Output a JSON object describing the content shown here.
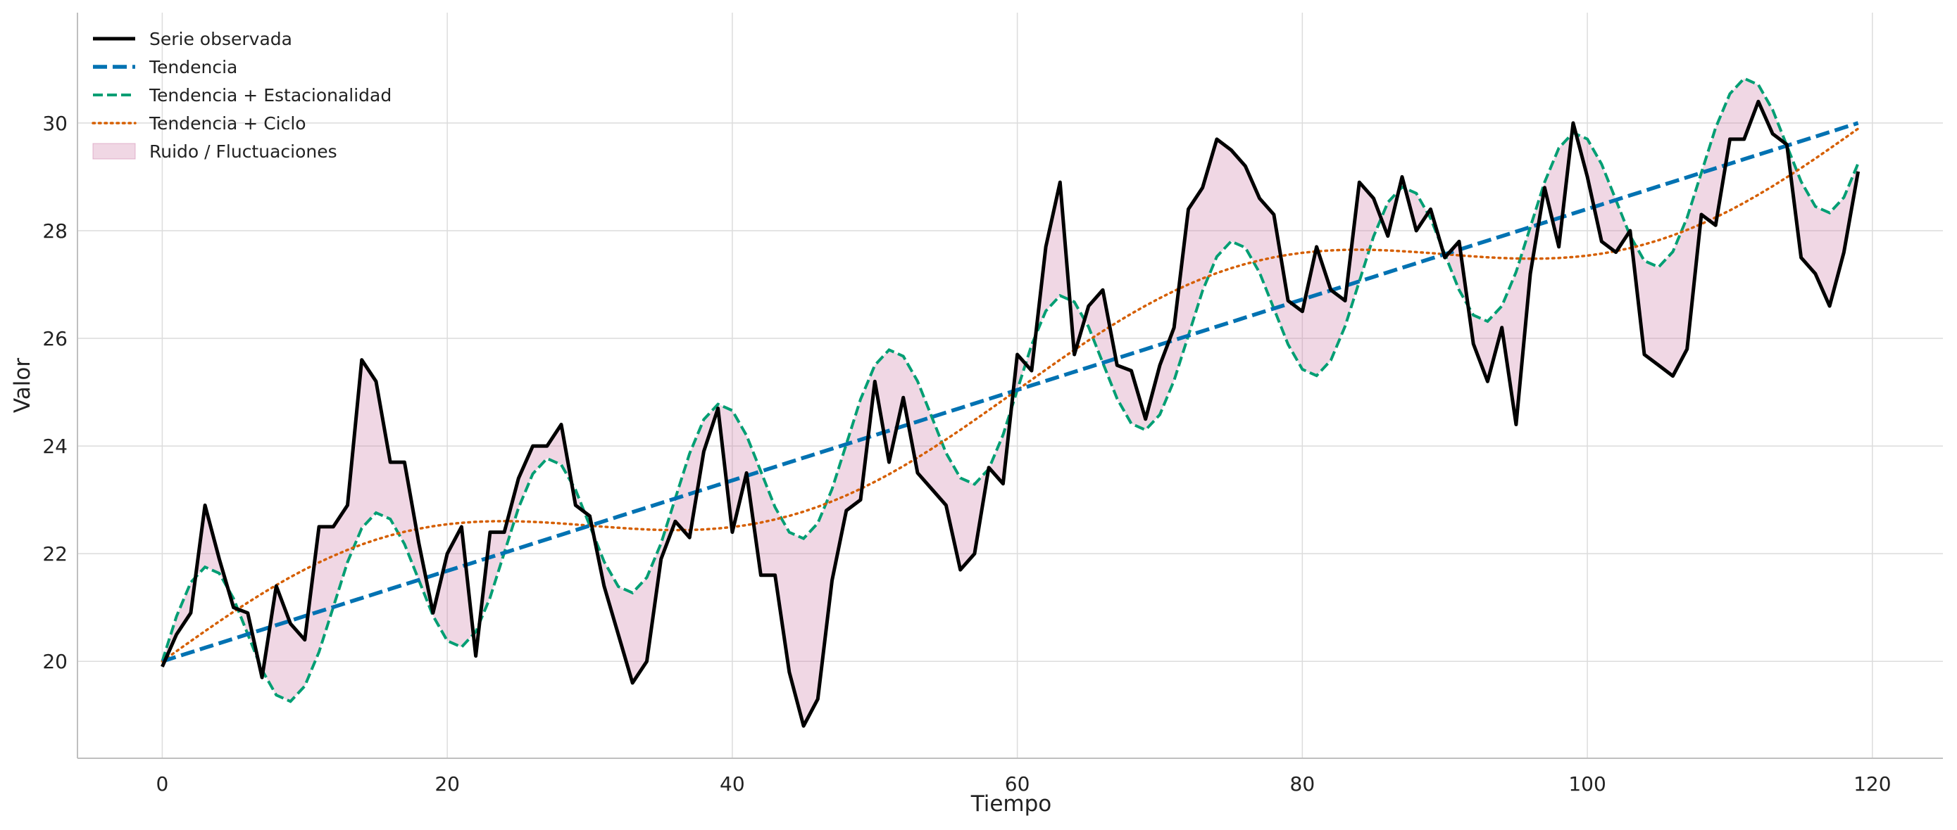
{
  "chart_data": {
    "type": "line",
    "title": "",
    "xlabel": "Tiempo",
    "ylabel": "Valor",
    "xlim": [
      -5.95,
      124.95
    ],
    "ylim": [
      18.2,
      32.05
    ],
    "xticks": [
      0,
      20,
      40,
      60,
      80,
      100,
      120
    ],
    "yticks": [
      20,
      22,
      24,
      26,
      28,
      30
    ],
    "grid": true,
    "legend_position": "top-left",
    "colors": {
      "observed": "#000000",
      "trend": "#0072b2",
      "seasonal": "#009e73",
      "cycle": "#d55e00",
      "noise": "#cc79a7",
      "grid": "#dcdcdc",
      "spine": "#bfbfbf"
    },
    "legend": [
      {
        "key": "observed",
        "label": "Serie observada"
      },
      {
        "key": "trend",
        "label": "Tendencia"
      },
      {
        "key": "seasonal",
        "label": "Tendencia + Estacionalidad"
      },
      {
        "key": "cycle",
        "label": "Tendencia + Ciclo"
      },
      {
        "key": "noise",
        "label": "Ruido / Fluctuaciones"
      }
    ],
    "series": [
      {
        "key": "observed",
        "name": "Serie observada",
        "style": "solid",
        "values": [
          19.9,
          20.5,
          20.9,
          22.9,
          21.9,
          21.0,
          20.9,
          19.7,
          21.4,
          20.7,
          20.4,
          22.5,
          22.5,
          22.9,
          25.6,
          25.2,
          23.7,
          23.7,
          22.2,
          20.9,
          22.0,
          22.5,
          20.1,
          22.4,
          22.4,
          23.4,
          24.0,
          24.0,
          24.4,
          22.9,
          22.7,
          21.4,
          20.5,
          19.6,
          20.0,
          21.9,
          22.6,
          22.3,
          23.9,
          24.7,
          22.4,
          23.5,
          21.6,
          21.6,
          19.8,
          18.8,
          19.3,
          21.5,
          22.8,
          23.0,
          25.2,
          23.7,
          24.9,
          23.5,
          23.2,
          22.9,
          21.7,
          22.0,
          23.6,
          23.3,
          25.7,
          25.4,
          27.7,
          28.9,
          25.7,
          26.6,
          26.9,
          25.5,
          25.4,
          24.5,
          25.5,
          26.2,
          28.4,
          28.8,
          29.7,
          29.5,
          29.2,
          28.6,
          28.3,
          26.7,
          26.5,
          27.7,
          26.9,
          26.7,
          28.9,
          28.6,
          27.9,
          29.0,
          28.0,
          28.4,
          27.5,
          27.8,
          25.9,
          25.2,
          26.2,
          24.4,
          27.2,
          28.8,
          27.7,
          30.0,
          29.0,
          27.8,
          27.6,
          28.0,
          25.7,
          25.5,
          25.3,
          25.8,
          28.3,
          28.1,
          29.7,
          29.7,
          30.4,
          29.8,
          29.6,
          27.5,
          27.2,
          26.6,
          27.6,
          29.1
        ]
      },
      {
        "key": "trend",
        "name": "Tendencia",
        "style": "dashed",
        "x": [
          0,
          119
        ],
        "values": [
          20.0,
          30.0
        ]
      },
      {
        "key": "seasonal",
        "name": "Tendencia + Estacionalidad",
        "style": "dashed",
        "function": "trend + 1.5*sin(2*pi*t/12)"
      },
      {
        "key": "cycle",
        "name": "Tendencia + Ciclo",
        "style": "dotted",
        "function": "trend + 1.0*sin(2*pi*t/60)"
      },
      {
        "key": "noise",
        "name": "Ruido / Fluctuaciones",
        "style": "band",
        "between": [
          "seasonal",
          "observed"
        ]
      }
    ]
  }
}
